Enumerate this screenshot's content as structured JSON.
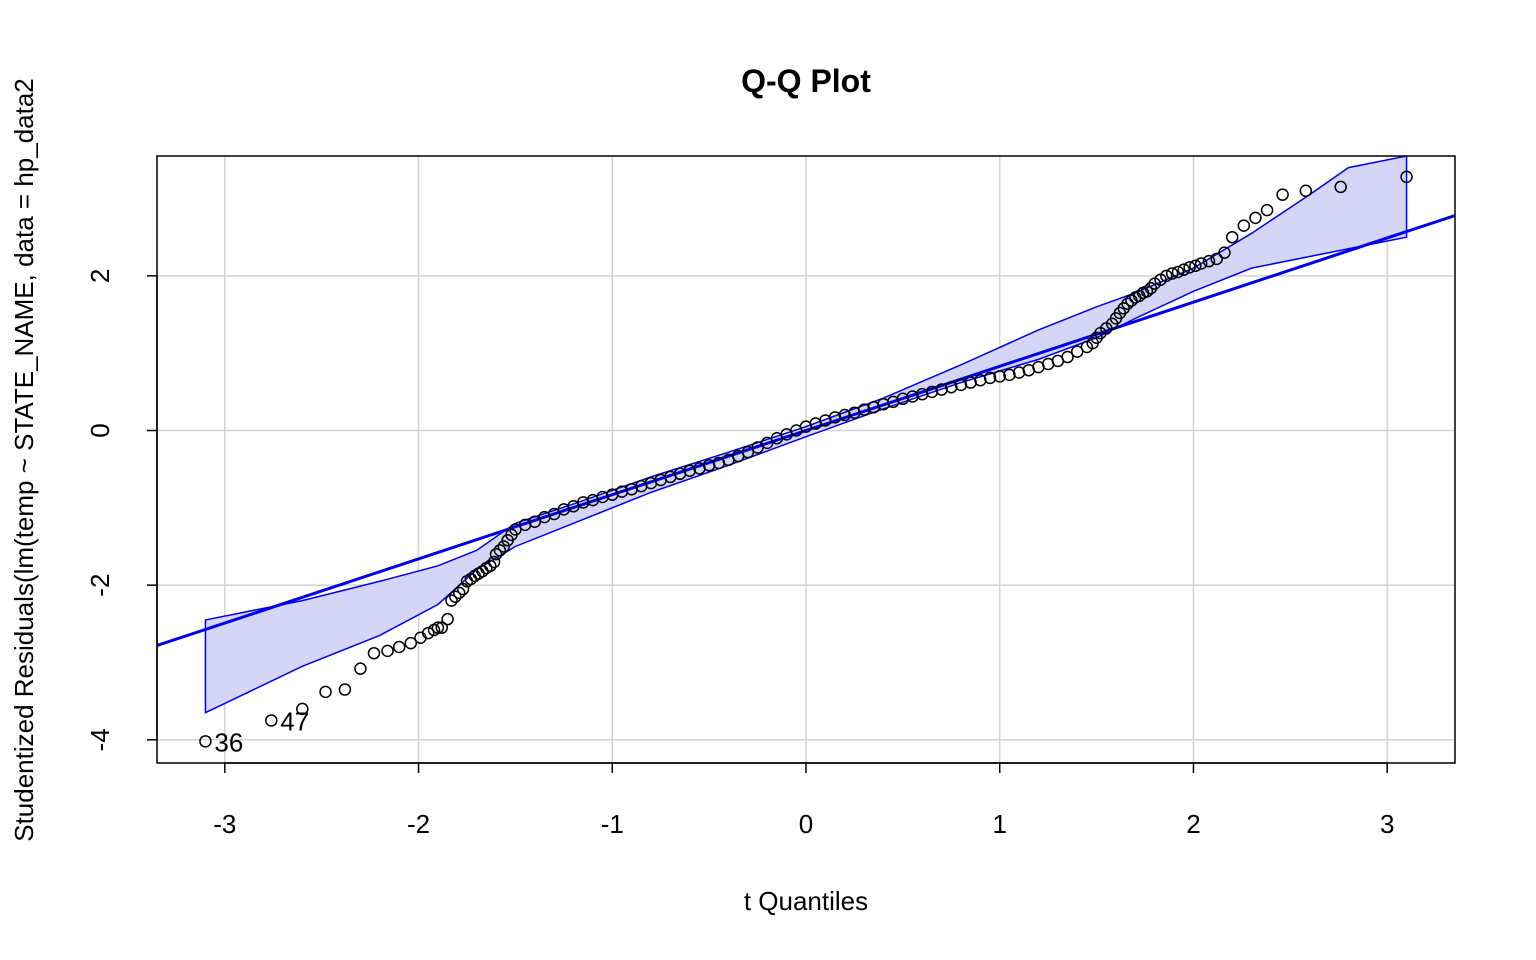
{
  "chart_data": {
    "type": "scatter",
    "title": "Q-Q Plot",
    "xlabel": "t Quantiles",
    "ylabel": "Studentized Residuals(lm(temp ~ STATE_NAME, data = hp_data2",
    "xlim": [
      -3.35,
      3.35
    ],
    "ylim": [
      -4.3,
      3.55
    ],
    "xticks": [
      -3,
      -2,
      -1,
      0,
      1,
      2,
      3
    ],
    "yticks": [
      -4,
      -2,
      0,
      2
    ],
    "grid": true,
    "colors": {
      "points": "#000000",
      "line": "#0000ee",
      "band_fill": "#d5d5f7",
      "band_stroke": "#0000ee",
      "grid": "#d3d3d3"
    },
    "reference_line": {
      "slope": 0.83,
      "intercept": 0.0
    },
    "envelope": {
      "x": [
        -3.1,
        -2.6,
        -2.2,
        -1.9,
        -1.7,
        -1.5,
        -1.2,
        -0.8,
        -0.4,
        0.0,
        0.4,
        0.8,
        1.2,
        1.5,
        1.7,
        2.0,
        2.3,
        2.6,
        2.8,
        3.1
      ],
      "upper": [
        -2.45,
        -2.2,
        -1.95,
        -1.75,
        -1.55,
        -1.2,
        -0.95,
        -0.6,
        -0.28,
        0.05,
        0.42,
        0.85,
        1.3,
        1.6,
        1.78,
        2.1,
        2.55,
        3.05,
        3.4,
        3.55
      ],
      "lower": [
        -3.65,
        -3.05,
        -2.65,
        -2.25,
        -1.8,
        -1.5,
        -1.2,
        -0.8,
        -0.45,
        -0.08,
        0.28,
        0.62,
        0.92,
        1.2,
        1.45,
        1.8,
        2.1,
        2.25,
        2.35,
        2.5
      ]
    },
    "points": {
      "x": [
        -3.1,
        -2.76,
        -2.6,
        -2.48,
        -2.38,
        -2.3,
        -2.23,
        -2.16,
        -2.1,
        -2.04,
        -1.99,
        -1.95,
        -1.92,
        -1.9,
        -1.88,
        -1.85,
        -1.83,
        -1.81,
        -1.79,
        -1.77,
        -1.75,
        -1.73,
        -1.71,
        -1.69,
        -1.67,
        -1.65,
        -1.63,
        -1.61,
        -1.6,
        -1.58,
        -1.56,
        -1.54,
        -1.52,
        -1.5,
        -1.45,
        -1.4,
        -1.35,
        -1.3,
        -1.25,
        -1.2,
        -1.15,
        -1.1,
        -1.05,
        -1.0,
        -0.95,
        -0.9,
        -0.85,
        -0.8,
        -0.75,
        -0.7,
        -0.65,
        -0.6,
        -0.55,
        -0.5,
        -0.45,
        -0.4,
        -0.35,
        -0.3,
        -0.25,
        -0.2,
        -0.15,
        -0.1,
        -0.05,
        0.0,
        0.05,
        0.1,
        0.15,
        0.2,
        0.25,
        0.3,
        0.35,
        0.4,
        0.45,
        0.5,
        0.55,
        0.6,
        0.65,
        0.7,
        0.75,
        0.8,
        0.85,
        0.9,
        0.95,
        1.0,
        1.05,
        1.1,
        1.15,
        1.2,
        1.25,
        1.3,
        1.35,
        1.4,
        1.45,
        1.48,
        1.5,
        1.52,
        1.55,
        1.58,
        1.6,
        1.62,
        1.64,
        1.66,
        1.68,
        1.7,
        1.72,
        1.74,
        1.76,
        1.78,
        1.8,
        1.83,
        1.86,
        1.89,
        1.92,
        1.95,
        1.98,
        2.01,
        2.04,
        2.08,
        2.12,
        2.16,
        2.2,
        2.26,
        2.32,
        2.38,
        2.46,
        2.58,
        2.76,
        3.1
      ],
      "y": [
        -4.02,
        -3.75,
        -3.6,
        -3.38,
        -3.35,
        -3.08,
        -2.88,
        -2.85,
        -2.8,
        -2.75,
        -2.68,
        -2.62,
        -2.58,
        -2.55,
        -2.55,
        -2.44,
        -2.2,
        -2.15,
        -2.1,
        -2.05,
        -1.95,
        -1.92,
        -1.88,
        -1.85,
        -1.82,
        -1.78,
        -1.75,
        -1.7,
        -1.6,
        -1.55,
        -1.5,
        -1.42,
        -1.35,
        -1.28,
        -1.22,
        -1.18,
        -1.12,
        -1.08,
        -1.02,
        -0.98,
        -0.93,
        -0.9,
        -0.86,
        -0.83,
        -0.79,
        -0.76,
        -0.72,
        -0.68,
        -0.64,
        -0.6,
        -0.56,
        -0.52,
        -0.49,
        -0.45,
        -0.42,
        -0.38,
        -0.33,
        -0.28,
        -0.22,
        -0.16,
        -0.1,
        -0.05,
        0.0,
        0.05,
        0.09,
        0.13,
        0.17,
        0.2,
        0.23,
        0.27,
        0.3,
        0.34,
        0.37,
        0.41,
        0.44,
        0.47,
        0.5,
        0.53,
        0.56,
        0.59,
        0.62,
        0.65,
        0.68,
        0.7,
        0.72,
        0.75,
        0.78,
        0.82,
        0.86,
        0.9,
        0.95,
        1.02,
        1.08,
        1.13,
        1.2,
        1.26,
        1.32,
        1.38,
        1.45,
        1.52,
        1.58,
        1.64,
        1.68,
        1.72,
        1.74,
        1.78,
        1.8,
        1.84,
        1.9,
        1.95,
        2.0,
        2.03,
        2.05,
        2.08,
        2.11,
        2.13,
        2.16,
        2.19,
        2.22,
        2.3,
        2.5,
        2.65,
        2.75,
        2.85,
        3.05,
        3.1,
        3.15,
        3.28
      ]
    },
    "annotations": [
      {
        "text": "36",
        "x": -3.1,
        "y": -4.02
      },
      {
        "text": "47",
        "x": -2.76,
        "y": -3.75
      }
    ]
  }
}
